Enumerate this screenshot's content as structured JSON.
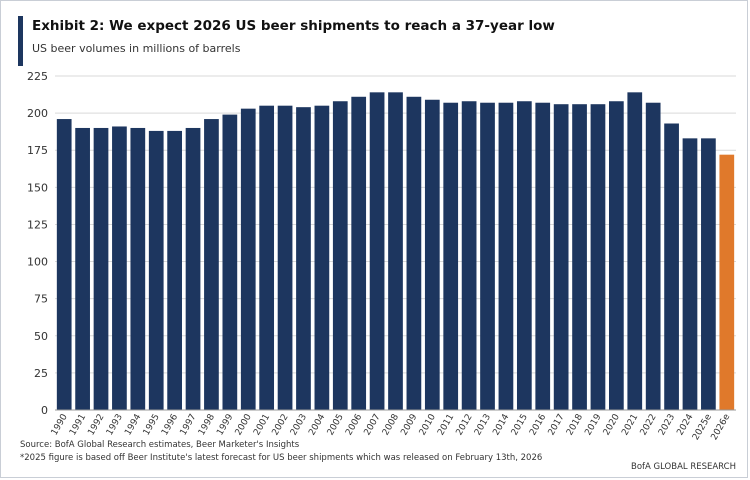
{
  "title": "Exhibit 2: We expect 2026 US beer shipments to reach a 37-year low",
  "subtitle": "US beer volumes in millions of barrels",
  "footnotes": {
    "source": "Source: BofA Global Research estimates, Beer Marketer's Insights",
    "note": "*2025 figure is based off Beer Institute's latest forecast for US beer shipments which was released on February 13th, 2026"
  },
  "brand": "BofA GLOBAL RESEARCH",
  "colors": {
    "actual": "#1d365f",
    "estimate": "#e0792b",
    "grid": "#d9d9d9"
  },
  "chart_data": {
    "type": "bar",
    "title": "We expect 2026 US beer shipments to reach a 37-year low",
    "ylabel": "US beer volumes in millions of barrels",
    "xlabel": "",
    "ylim": [
      0,
      225
    ],
    "yticks": [
      0,
      25,
      50,
      75,
      100,
      125,
      150,
      175,
      200,
      225
    ],
    "grid": true,
    "categories": [
      "1990",
      "1991",
      "1992",
      "1993",
      "1994",
      "1995",
      "1996",
      "1997",
      "1998",
      "1999",
      "2000",
      "2001",
      "2002",
      "2003",
      "2004",
      "2005",
      "2006",
      "2007",
      "2008",
      "2009",
      "2010",
      "2011",
      "2012",
      "2013",
      "2014",
      "2015",
      "2016",
      "2017",
      "2018",
      "2019",
      "2020",
      "2021",
      "2022",
      "2023",
      "2024",
      "2025e",
      "2026e"
    ],
    "values": [
      196,
      190,
      190,
      191,
      190,
      188,
      188,
      190,
      196,
      199,
      203,
      205,
      205,
      204,
      205,
      208,
      211,
      214,
      214,
      211,
      209,
      207,
      208,
      207,
      207,
      208,
      207,
      206,
      206,
      206,
      208,
      214,
      207,
      193,
      183,
      183,
      172
    ],
    "highlighted": [
      "2026e"
    ]
  }
}
